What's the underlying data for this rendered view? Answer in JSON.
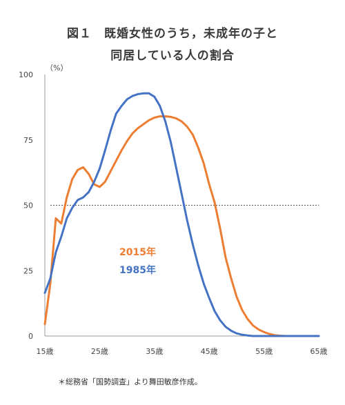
{
  "chart_data": {
    "type": "line",
    "title_line1": "図１　既婚女性のうち，未成年の子と",
    "title_line2": "同居している人の割合",
    "ylabel": "（%）",
    "xlim": [
      15,
      65
    ],
    "ylim": [
      0,
      100
    ],
    "x_ticks": [
      15,
      25,
      35,
      45,
      55,
      65
    ],
    "x_tick_labels": [
      "15歳",
      "25歳",
      "35歳",
      "45歳",
      "55歳",
      "65歳"
    ],
    "y_ticks": [
      0,
      25,
      50,
      75,
      100
    ],
    "y_tick_labels": [
      "0",
      "25",
      "50",
      "75",
      "100"
    ],
    "reference_line": 50,
    "series": [
      {
        "name": "2015年",
        "color": "#ED7D31",
        "x": [
          15,
          16,
          17,
          18,
          19,
          20,
          21,
          22,
          23,
          24,
          25,
          26,
          27,
          28,
          29,
          30,
          31,
          32,
          33,
          34,
          35,
          36,
          37,
          38,
          39,
          40,
          41,
          42,
          43,
          44,
          45,
          46,
          47,
          48,
          49,
          50,
          51,
          52,
          53,
          54,
          55,
          56,
          57,
          58,
          59,
          60,
          61,
          62,
          63,
          64,
          65
        ],
        "values": [
          4.5,
          20,
          45,
          43,
          53,
          60,
          63.5,
          64.5,
          62,
          58,
          57,
          59,
          63,
          67,
          71,
          74.5,
          77.5,
          79.5,
          81,
          82.5,
          83.5,
          84,
          84,
          83.8,
          83.2,
          82,
          80,
          77,
          72,
          66,
          58,
          51,
          41,
          30,
          22,
          15,
          10,
          6.5,
          4,
          2.5,
          1.5,
          0.8,
          0.3,
          0.1,
          0,
          0,
          0,
          0,
          0,
          0,
          0
        ]
      },
      {
        "name": "1985年",
        "color": "#4472C4",
        "x": [
          15,
          16,
          17,
          18,
          19,
          20,
          21,
          22,
          23,
          24,
          25,
          26,
          27,
          28,
          29,
          30,
          31,
          32,
          33,
          34,
          35,
          36,
          37,
          38,
          39,
          40,
          41,
          42,
          43,
          44,
          45,
          46,
          47,
          48,
          49,
          50,
          51,
          52,
          53,
          54,
          55,
          56,
          57,
          58,
          59,
          60,
          61,
          62,
          63,
          64,
          65
        ],
        "values": [
          16.5,
          22,
          32,
          38,
          45,
          49,
          52,
          53,
          55,
          59,
          64,
          71,
          78.5,
          85,
          88,
          90.5,
          91.8,
          92.5,
          92.8,
          92.8,
          91.5,
          88,
          82,
          74,
          64,
          54,
          44,
          35,
          27,
          20,
          14.5,
          9.5,
          6,
          3.5,
          2,
          1,
          0.5,
          0.2,
          0,
          0,
          0,
          0,
          0,
          0,
          0,
          0,
          0,
          0,
          0,
          0,
          0
        ]
      }
    ],
    "legend": [
      {
        "label": "2015年",
        "color": "#ED7D31"
      },
      {
        "label": "1985年",
        "color": "#4472C4"
      }
    ],
    "source_note": "＊総務省「国勢調査」より舞田敏彦作成。"
  }
}
